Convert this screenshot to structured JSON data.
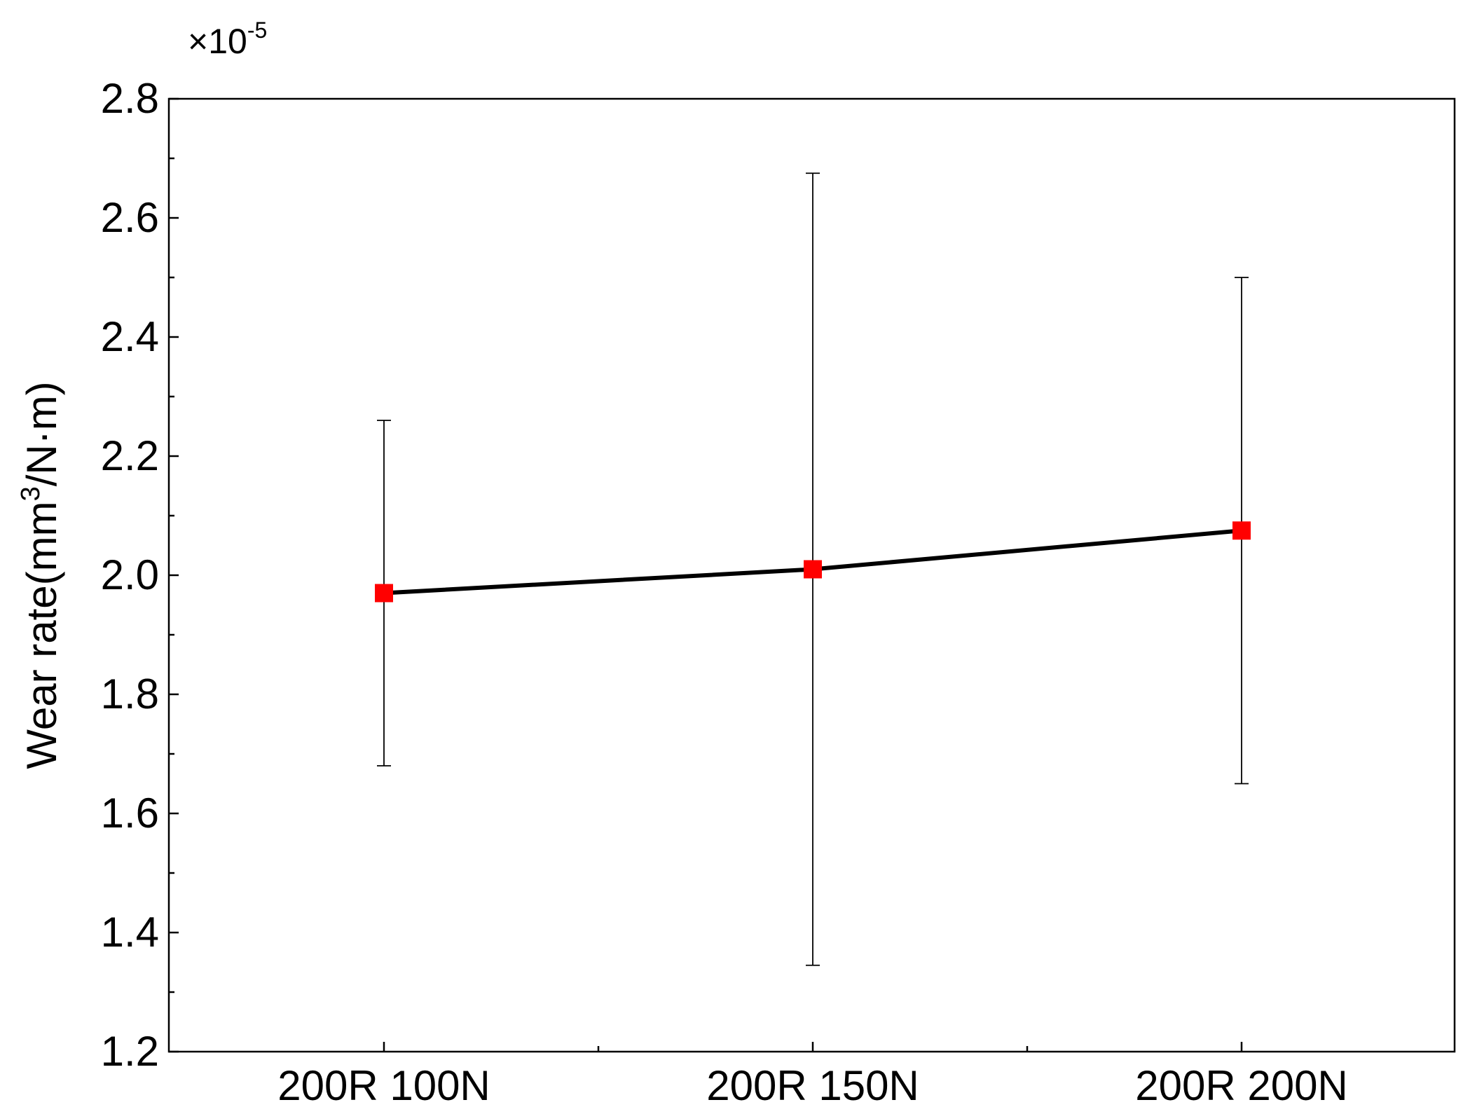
{
  "chart_data": {
    "type": "line",
    "title": "",
    "xlabel": "",
    "ylabel_parts": {
      "before": "Wear rate(mm",
      "superscript": "3",
      "after": "/N·m)"
    },
    "y_exponent": {
      "prefix": "×10",
      "power": "-5"
    },
    "categories": [
      "200R 100N",
      "200R 150N",
      "200R 200N"
    ],
    "series": [
      {
        "values": [
          1.97,
          2.01,
          2.075
        ],
        "error_low": [
          1.68,
          1.345,
          1.65
        ],
        "error_high": [
          2.26,
          2.675,
          2.5
        ],
        "line_color": "#000000",
        "marker_color": "#ff0000",
        "marker": "square"
      }
    ],
    "ylim": [
      1.2,
      2.8
    ],
    "yticks": [
      1.2,
      1.4,
      1.6,
      1.8,
      2.0,
      2.2,
      2.4,
      2.6,
      2.8
    ],
    "ytick_labels": [
      "1.2",
      "1.4",
      "1.6",
      "1.8",
      "2.0",
      "2.2",
      "2.4",
      "2.6",
      "2.8"
    ],
    "grid": false,
    "legend": "none"
  }
}
